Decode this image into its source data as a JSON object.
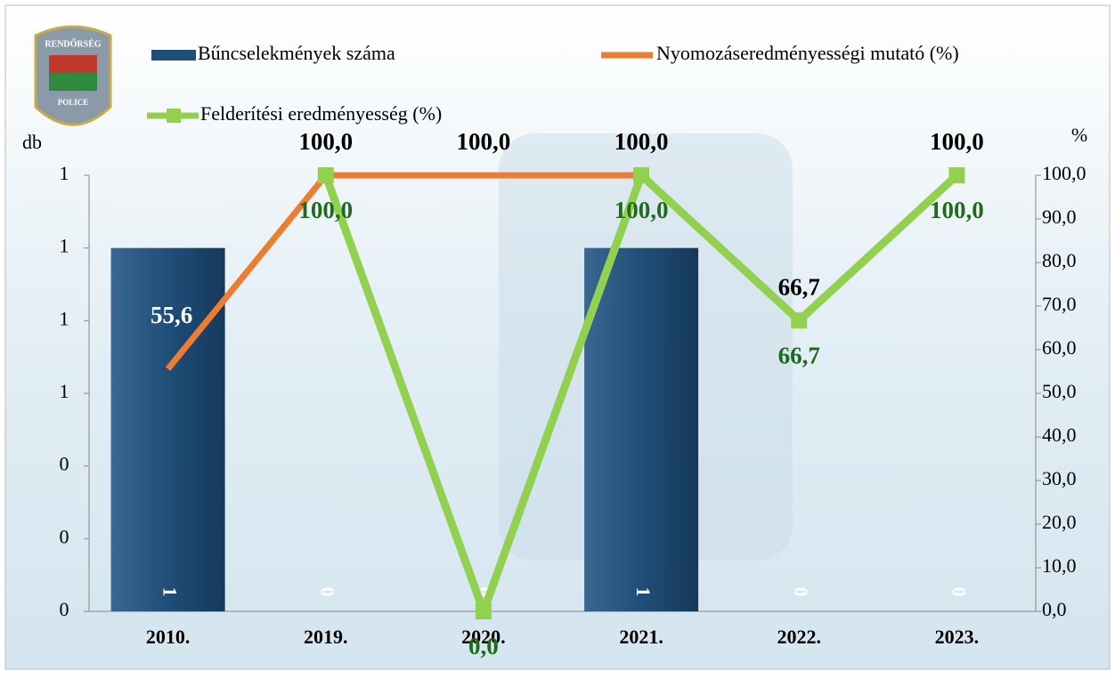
{
  "chart_data": {
    "type": "bar-line",
    "logo": {
      "top": "RENDŐRSÉG",
      "bottom": "POLICE"
    },
    "y_label": "db",
    "y2_label": "%",
    "categories": [
      "2010.",
      "2019.",
      "2020.",
      "2021.",
      "2022.",
      "2023."
    ],
    "series": [
      {
        "name": "Bűncselekmények száma",
        "type": "bar",
        "color": "#1f4e79",
        "values": [
          1,
          0,
          0,
          1,
          0,
          0
        ]
      },
      {
        "name": "Nyomozáseredményességi mutató (%)",
        "type": "line",
        "axis": "y2",
        "color": "#ed7d31",
        "values": [
          55.6,
          100,
          100,
          100,
          66.7,
          100
        ],
        "value_labels": [
          "55,6",
          "100,0",
          "100,0",
          "100,0",
          "66,7",
          "100,0"
        ]
      },
      {
        "name": "Felderítési eredményesség (%)",
        "type": "line",
        "axis": "y2",
        "color": "#92d050",
        "values": [
          null,
          100,
          0,
          100,
          66.7,
          100
        ],
        "value_labels": [
          null,
          "100,0",
          "0,0",
          "100,0",
          "66,7",
          "100,0"
        ]
      }
    ],
    "ylim": [
      0,
      1.2
    ],
    "yticks": [
      0,
      {
        "value": 0.2,
        "label": "0"
      },
      {
        "value": 0.4,
        "label": "0"
      },
      {
        "value": 0.6,
        "label": "1"
      },
      {
        "value": 0.8,
        "label": "1"
      },
      {
        "value": 1.0,
        "label": "1"
      },
      {
        "value": 1.2,
        "label": "1"
      }
    ],
    "y2lim": [
      0,
      100
    ],
    "y2ticks": [
      {
        "value": 0,
        "label": "0,0"
      },
      {
        "value": 10,
        "label": "10,0"
      },
      {
        "value": 20,
        "label": "20,0"
      },
      {
        "value": 30,
        "label": "30,0"
      },
      {
        "value": 40,
        "label": "40,0"
      },
      {
        "value": 50,
        "label": "50,0"
      },
      {
        "value": 60,
        "label": "60,0"
      },
      {
        "value": 70,
        "label": "70,0"
      },
      {
        "value": 80,
        "label": "80,0"
      },
      {
        "value": 90,
        "label": "90,0"
      },
      {
        "value": 100,
        "label": "100,0"
      }
    ]
  }
}
